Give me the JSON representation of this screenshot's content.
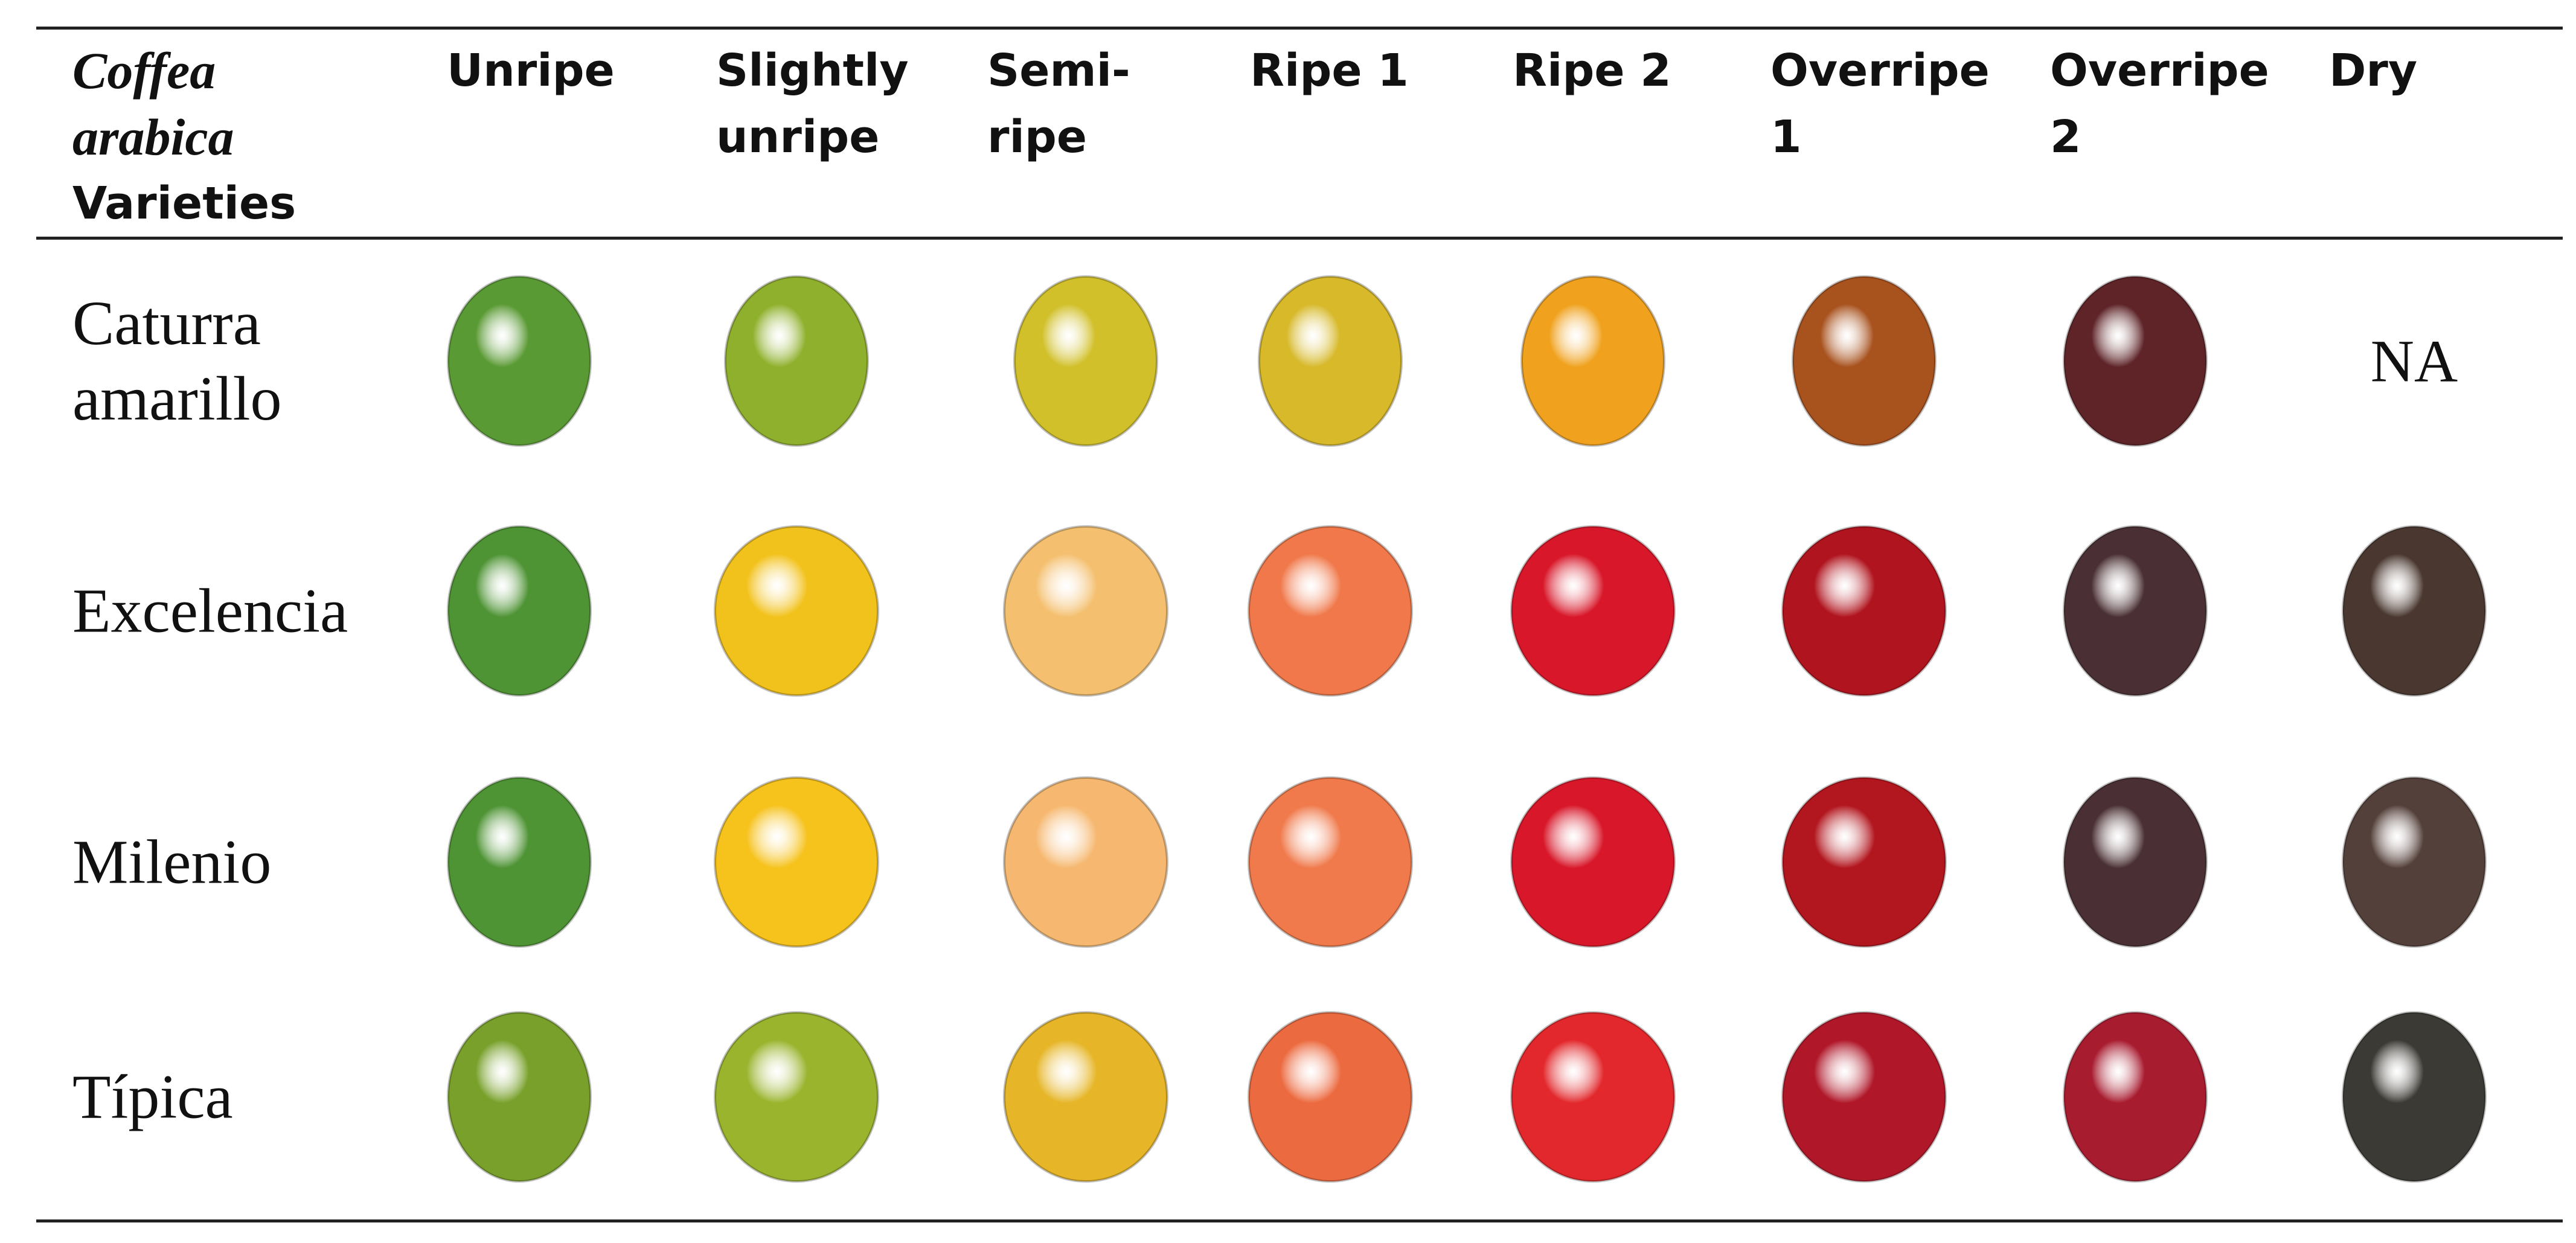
{
  "table": {
    "corner": {
      "species": "Coffea arabica",
      "label": "Varieties"
    },
    "columns": [
      "Unripe",
      "Slightly unripe",
      "Semi-ripe",
      "Ripe 1",
      "Ripe 2",
      "Overripe 1",
      "Overripe 2",
      "Dry"
    ],
    "rows": [
      {
        "variety": "Caturra amarillo",
        "cells": [
          null,
          null,
          null,
          null,
          null,
          null,
          null,
          "NA"
        ]
      },
      {
        "variety": "Excelencia",
        "cells": [
          null,
          null,
          null,
          null,
          null,
          null,
          null,
          null
        ]
      },
      {
        "variety": "Milenio",
        "cells": [
          null,
          null,
          null,
          null,
          null,
          null,
          null,
          null
        ]
      },
      {
        "variety": "Típica",
        "cells": [
          null,
          null,
          null,
          null,
          null,
          null,
          null,
          null
        ]
      }
    ]
  }
}
